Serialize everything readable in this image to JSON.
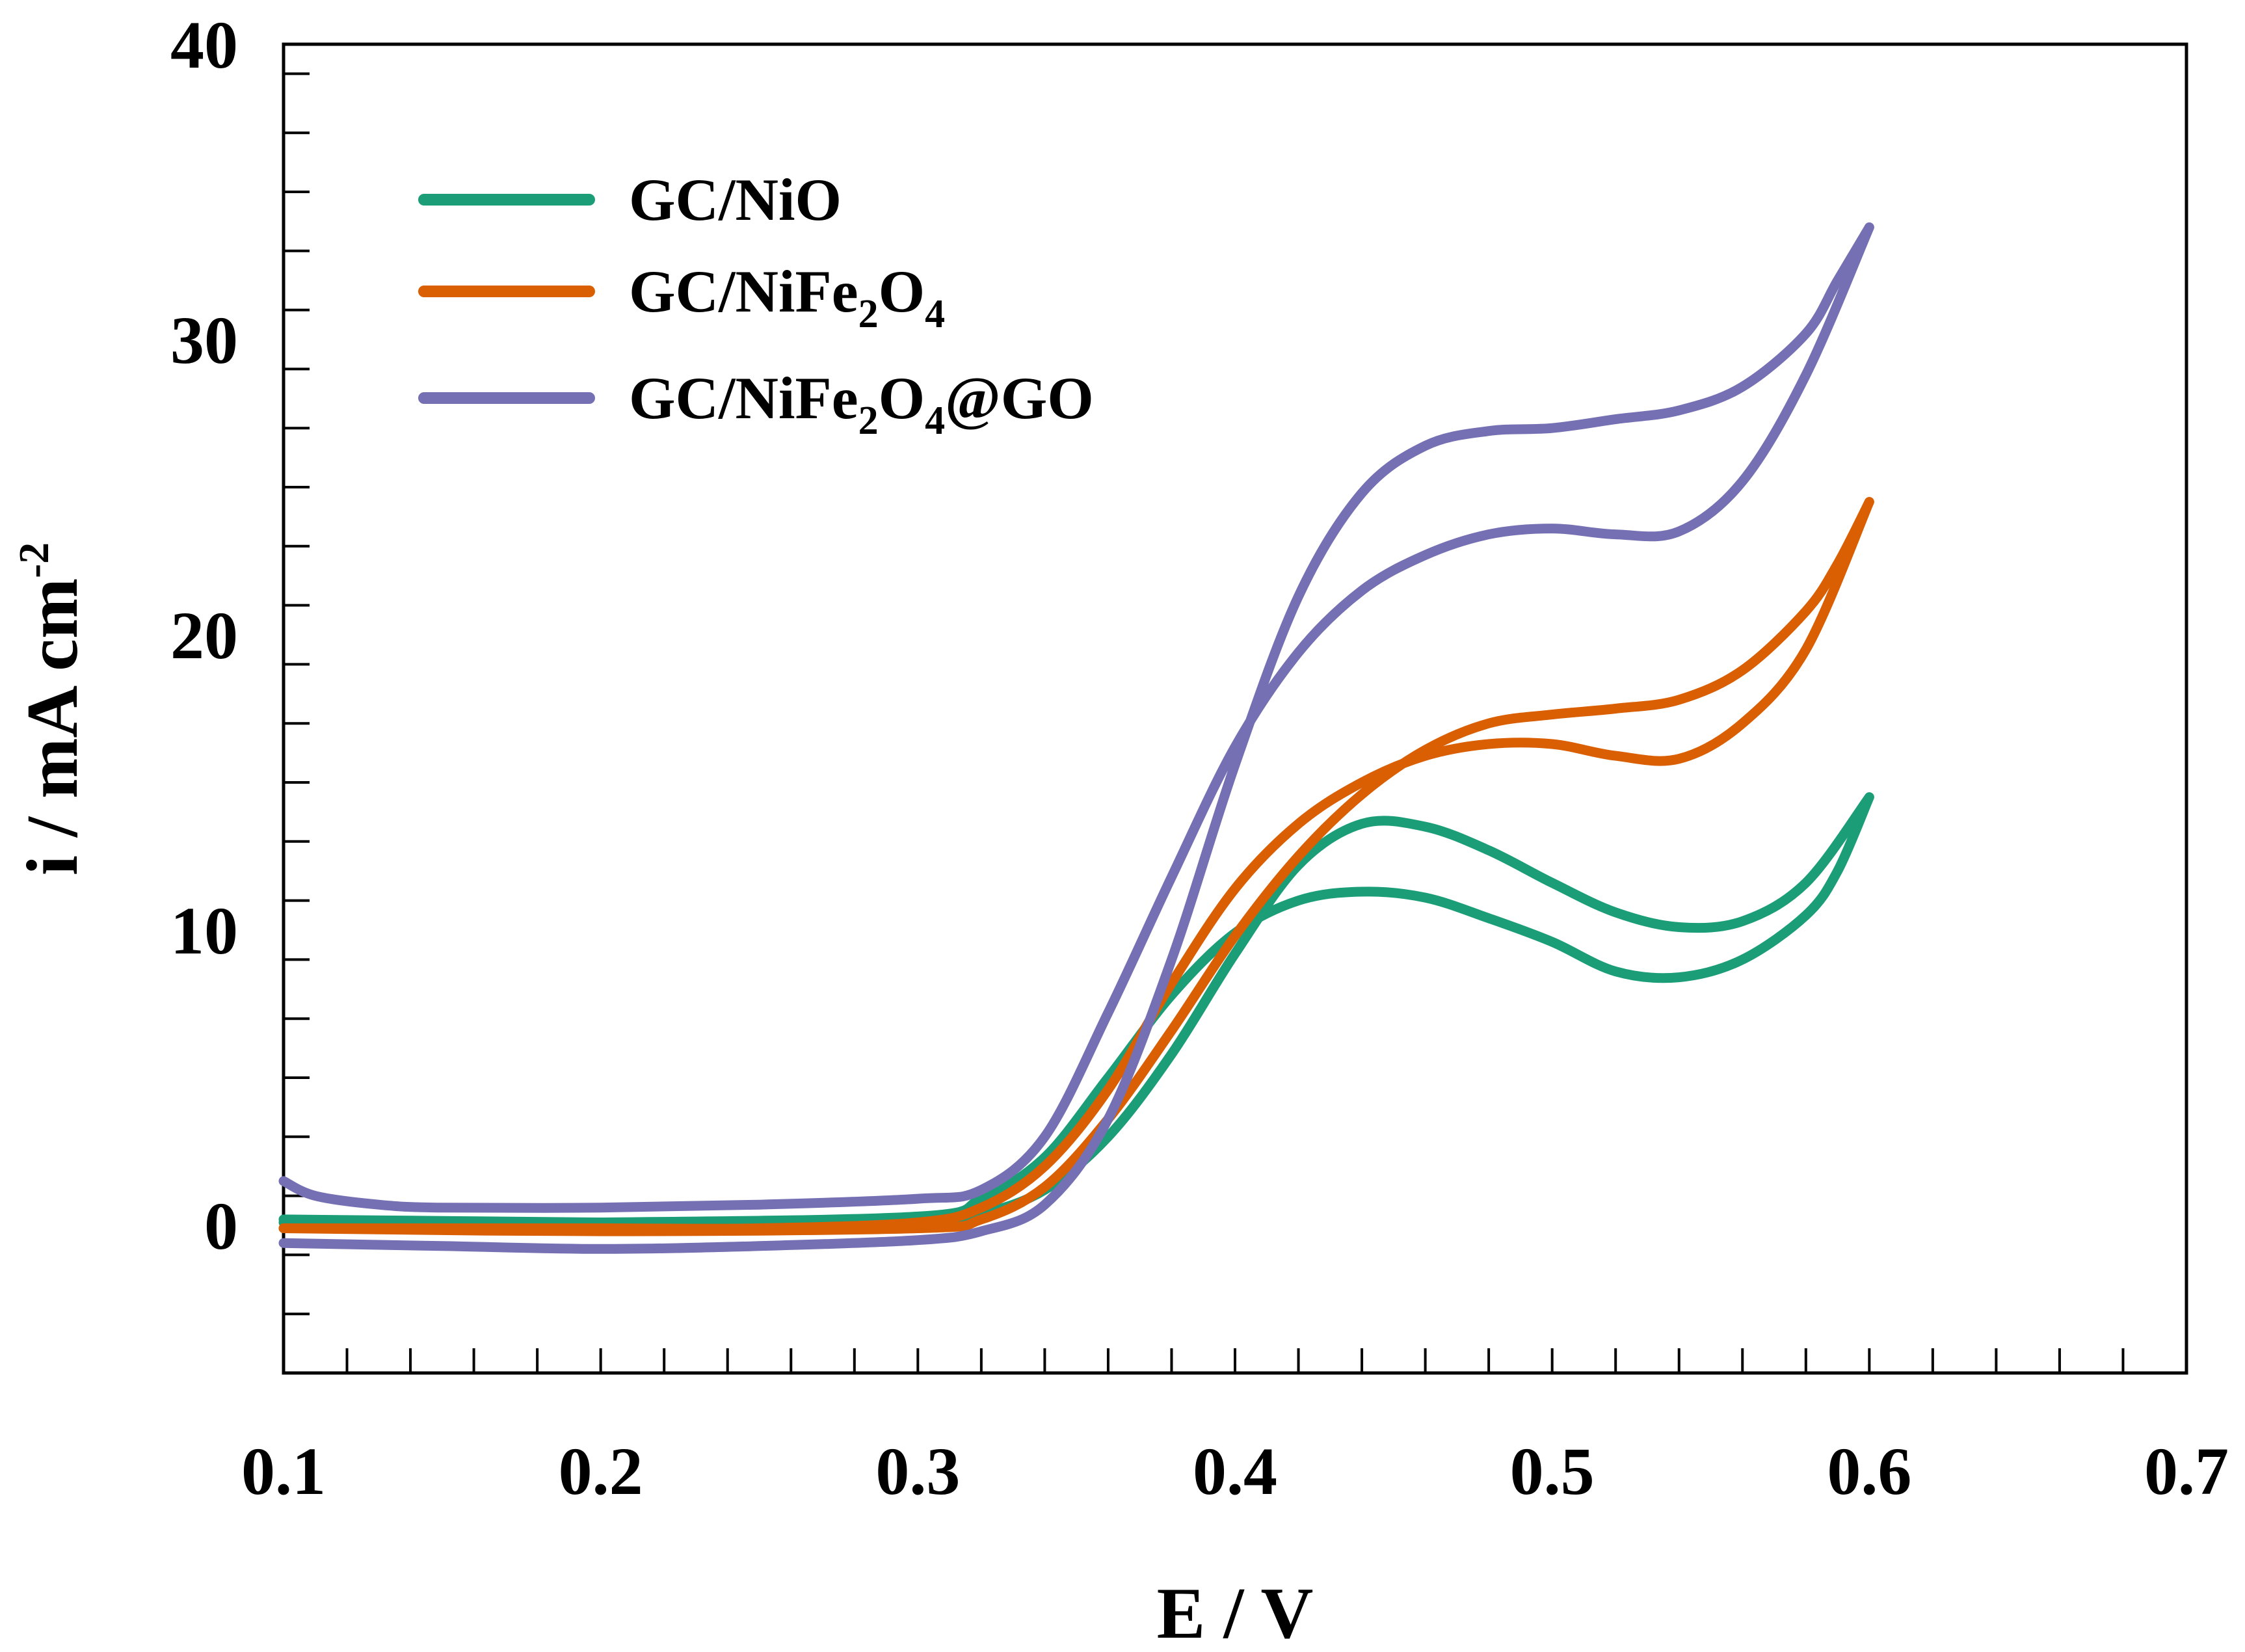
{
  "chart_data": {
    "type": "line",
    "title": "",
    "xlabel": "E / V",
    "ylabel": {
      "main": "i / mA cm",
      "superscript": "-2"
    },
    "xlim": [
      0.1,
      0.7
    ],
    "ylim": [
      -5,
      40
    ],
    "xticks": [
      0.1,
      0.2,
      0.3,
      0.4,
      0.5,
      0.6,
      0.7
    ],
    "xtick_labels": [
      "0.1",
      "0.2",
      "0.3",
      "0.4",
      "0.5",
      "0.6",
      "0.7"
    ],
    "yticks": [
      0,
      10,
      20,
      30,
      40
    ],
    "ytick_labels": [
      "0",
      "10",
      "20",
      "30",
      "40"
    ],
    "x_minor_step": 0.02,
    "y_minor_step": 2,
    "grid": false,
    "legend_position": "top-left",
    "series": [
      {
        "name": "GC/NiO",
        "legend": {
          "text": "GC/NiO",
          "sub": []
        },
        "color": "#1b9e77",
        "forward": [
          [
            0.1,
            0.2
          ],
          [
            0.15,
            0.15
          ],
          [
            0.2,
            0.1
          ],
          [
            0.25,
            0.1
          ],
          [
            0.3,
            0.2
          ],
          [
            0.32,
            0.4
          ],
          [
            0.34,
            1.2
          ],
          [
            0.36,
            3.0
          ],
          [
            0.38,
            5.8
          ],
          [
            0.4,
            9.2
          ],
          [
            0.42,
            12.2
          ],
          [
            0.44,
            13.6
          ],
          [
            0.46,
            13.5
          ],
          [
            0.48,
            12.7
          ],
          [
            0.5,
            11.6
          ],
          [
            0.52,
            10.6
          ],
          [
            0.54,
            10.1
          ],
          [
            0.56,
            10.3
          ],
          [
            0.58,
            11.6
          ],
          [
            0.6,
            14.5
          ]
        ],
        "reverse": [
          [
            0.6,
            14.5
          ],
          [
            0.59,
            12.0
          ],
          [
            0.58,
            10.5
          ],
          [
            0.56,
            9.0
          ],
          [
            0.54,
            8.4
          ],
          [
            0.52,
            8.6
          ],
          [
            0.5,
            9.6
          ],
          [
            0.48,
            10.4
          ],
          [
            0.46,
            11.1
          ],
          [
            0.44,
            11.3
          ],
          [
            0.42,
            11.0
          ],
          [
            0.4,
            9.9
          ],
          [
            0.38,
            7.8
          ],
          [
            0.36,
            5.0
          ],
          [
            0.34,
            2.3
          ],
          [
            0.32,
            0.9
          ],
          [
            0.3,
            0.3
          ],
          [
            0.2,
            0.1
          ],
          [
            0.1,
            0.1
          ]
        ]
      },
      {
        "name": "GC/NiFe2O4",
        "legend": {
          "text": "GC/NiFe",
          "sub": [
            "2",
            "O",
            "4"
          ]
        },
        "color": "#d95f02",
        "forward": [
          [
            0.1,
            -0.1
          ],
          [
            0.15,
            -0.1
          ],
          [
            0.2,
            -0.1
          ],
          [
            0.25,
            -0.1
          ],
          [
            0.3,
            0.1
          ],
          [
            0.32,
            0.6
          ],
          [
            0.34,
            2.0
          ],
          [
            0.36,
            4.6
          ],
          [
            0.38,
            8.2
          ],
          [
            0.4,
            11.4
          ],
          [
            0.42,
            13.6
          ],
          [
            0.44,
            15.0
          ],
          [
            0.46,
            15.9
          ],
          [
            0.48,
            16.3
          ],
          [
            0.5,
            16.3
          ],
          [
            0.52,
            15.9
          ],
          [
            0.54,
            15.8
          ],
          [
            0.56,
            17.0
          ],
          [
            0.58,
            19.5
          ],
          [
            0.6,
            24.5
          ]
        ],
        "reverse": [
          [
            0.6,
            24.5
          ],
          [
            0.59,
            22.4
          ],
          [
            0.58,
            20.8
          ],
          [
            0.56,
            18.8
          ],
          [
            0.54,
            17.8
          ],
          [
            0.52,
            17.5
          ],
          [
            0.5,
            17.3
          ],
          [
            0.48,
            17.0
          ],
          [
            0.46,
            16.1
          ],
          [
            0.44,
            14.6
          ],
          [
            0.42,
            12.5
          ],
          [
            0.4,
            9.8
          ],
          [
            0.38,
            6.6
          ],
          [
            0.36,
            3.6
          ],
          [
            0.34,
            1.3
          ],
          [
            0.32,
            0.2
          ],
          [
            0.3,
            -0.1
          ],
          [
            0.2,
            -0.2
          ],
          [
            0.1,
            -0.1
          ]
        ]
      },
      {
        "name": "GC/NiFe2O4@GO",
        "legend": {
          "text": "GC/NiFe",
          "sub": [
            "2",
            "O",
            "4"
          ],
          "suffix": "@GO"
        },
        "color": "#7570b3",
        "forward": [
          [
            0.1,
            1.5
          ],
          [
            0.11,
            1.0
          ],
          [
            0.13,
            0.7
          ],
          [
            0.15,
            0.6
          ],
          [
            0.2,
            0.6
          ],
          [
            0.25,
            0.7
          ],
          [
            0.3,
            0.9
          ],
          [
            0.32,
            1.2
          ],
          [
            0.34,
            3.0
          ],
          [
            0.36,
            7.2
          ],
          [
            0.38,
            11.8
          ],
          [
            0.4,
            16.2
          ],
          [
            0.42,
            19.4
          ],
          [
            0.44,
            21.5
          ],
          [
            0.46,
            22.7
          ],
          [
            0.48,
            23.4
          ],
          [
            0.5,
            23.6
          ],
          [
            0.52,
            23.4
          ],
          [
            0.54,
            23.5
          ],
          [
            0.56,
            25.2
          ],
          [
            0.58,
            28.8
          ],
          [
            0.6,
            33.8
          ]
        ],
        "reverse": [
          [
            0.6,
            33.8
          ],
          [
            0.59,
            32.0
          ],
          [
            0.58,
            30.2
          ],
          [
            0.56,
            28.4
          ],
          [
            0.54,
            27.6
          ],
          [
            0.52,
            27.3
          ],
          [
            0.5,
            27.0
          ],
          [
            0.48,
            26.9
          ],
          [
            0.46,
            26.4
          ],
          [
            0.44,
            24.8
          ],
          [
            0.42,
            21.3
          ],
          [
            0.4,
            15.6
          ],
          [
            0.38,
            9.0
          ],
          [
            0.36,
            3.6
          ],
          [
            0.34,
            0.7
          ],
          [
            0.32,
            -0.2
          ],
          [
            0.3,
            -0.5
          ],
          [
            0.25,
            -0.7
          ],
          [
            0.2,
            -0.8
          ],
          [
            0.15,
            -0.7
          ],
          [
            0.1,
            -0.6
          ]
        ]
      }
    ]
  }
}
